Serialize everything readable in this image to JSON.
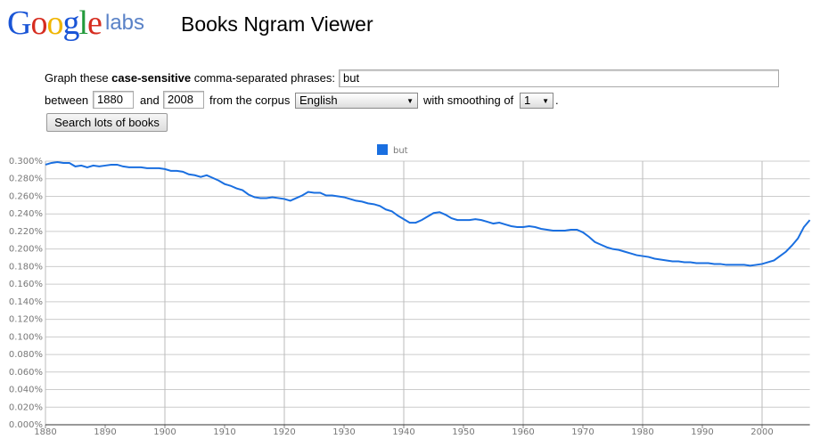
{
  "header": {
    "logo": "Google",
    "logo_suffix": "labs",
    "title": "Books Ngram Viewer"
  },
  "form": {
    "prefix": "Graph these",
    "bold": "case-sensitive",
    "suffix": "comma-separated phrases:",
    "phrase": "but",
    "between": "between",
    "start": "1880",
    "and": "and",
    "end": "2008",
    "corpus_label": "from the corpus",
    "corpus": "English",
    "smoothing_label": "with smoothing of",
    "smoothing": "1",
    "smoothing_end": ".",
    "button": "Search lots of books"
  },
  "chart_data": {
    "type": "line",
    "x": [
      1880,
      1881,
      1882,
      1883,
      1884,
      1885,
      1886,
      1887,
      1888,
      1889,
      1890,
      1891,
      1892,
      1893,
      1894,
      1895,
      1896,
      1897,
      1898,
      1899,
      1900,
      1901,
      1902,
      1903,
      1904,
      1905,
      1906,
      1907,
      1908,
      1909,
      1910,
      1911,
      1912,
      1913,
      1914,
      1915,
      1916,
      1917,
      1918,
      1919,
      1920,
      1921,
      1922,
      1923,
      1924,
      1925,
      1926,
      1927,
      1928,
      1929,
      1930,
      1931,
      1932,
      1933,
      1934,
      1935,
      1936,
      1937,
      1938,
      1939,
      1940,
      1941,
      1942,
      1943,
      1944,
      1945,
      1946,
      1947,
      1948,
      1949,
      1950,
      1951,
      1952,
      1953,
      1954,
      1955,
      1956,
      1957,
      1958,
      1959,
      1960,
      1961,
      1962,
      1963,
      1964,
      1965,
      1966,
      1967,
      1968,
      1969,
      1970,
      1971,
      1972,
      1973,
      1974,
      1975,
      1976,
      1977,
      1978,
      1979,
      1980,
      1981,
      1982,
      1983,
      1984,
      1985,
      1986,
      1987,
      1988,
      1989,
      1990,
      1991,
      1992,
      1993,
      1994,
      1995,
      1996,
      1997,
      1998,
      1999,
      2000,
      2001,
      2002,
      2003,
      2004,
      2005,
      2006,
      2007,
      2008
    ],
    "series": [
      {
        "name": "but",
        "color": "#1a6fe0",
        "values": [
          0.296,
          0.298,
          0.299,
          0.298,
          0.298,
          0.294,
          0.295,
          0.293,
          0.295,
          0.294,
          0.295,
          0.296,
          0.296,
          0.294,
          0.293,
          0.293,
          0.293,
          0.292,
          0.292,
          0.292,
          0.291,
          0.289,
          0.289,
          0.288,
          0.285,
          0.284,
          0.282,
          0.284,
          0.281,
          0.278,
          0.274,
          0.272,
          0.269,
          0.267,
          0.262,
          0.259,
          0.258,
          0.258,
          0.259,
          0.258,
          0.257,
          0.255,
          0.258,
          0.261,
          0.265,
          0.264,
          0.264,
          0.261,
          0.261,
          0.26,
          0.259,
          0.257,
          0.255,
          0.254,
          0.252,
          0.251,
          0.249,
          0.245,
          0.243,
          0.238,
          0.234,
          0.23,
          0.23,
          0.233,
          0.237,
          0.241,
          0.242,
          0.239,
          0.235,
          0.233,
          0.233,
          0.233,
          0.234,
          0.233,
          0.231,
          0.229,
          0.23,
          0.228,
          0.226,
          0.225,
          0.225,
          0.226,
          0.225,
          0.223,
          0.222,
          0.221,
          0.221,
          0.221,
          0.222,
          0.222,
          0.219,
          0.214,
          0.208,
          0.205,
          0.202,
          0.2,
          0.199,
          0.197,
          0.195,
          0.193,
          0.192,
          0.191,
          0.189,
          0.188,
          0.187,
          0.186,
          0.186,
          0.185,
          0.185,
          0.184,
          0.184,
          0.184,
          0.183,
          0.183,
          0.182,
          0.182,
          0.182,
          0.182,
          0.181,
          0.182,
          0.183,
          0.185,
          0.187,
          0.192,
          0.197,
          0.204,
          0.212,
          0.225,
          0.233
        ]
      }
    ],
    "xlim": [
      1880,
      2008
    ],
    "xticks": [
      1880,
      1890,
      1900,
      1910,
      1920,
      1930,
      1940,
      1950,
      1960,
      1970,
      1980,
      1990,
      2000
    ],
    "ylim": [
      0,
      0.3
    ],
    "yticks": [
      {
        "value": 0,
        "label": "0.000%"
      },
      {
        "value": 0.02,
        "label": "0.020%"
      },
      {
        "value": 0.04,
        "label": "0.040%"
      },
      {
        "value": 0.06,
        "label": "0.060%"
      },
      {
        "value": 0.08,
        "label": "0.080%"
      },
      {
        "value": 0.1,
        "label": "0.100%"
      },
      {
        "value": 0.12,
        "label": "0.120%"
      },
      {
        "value": 0.14,
        "label": "0.140%"
      },
      {
        "value": 0.16,
        "label": "0.160%"
      },
      {
        "value": 0.18,
        "label": "0.180%"
      },
      {
        "value": 0.2,
        "label": "0.200%"
      },
      {
        "value": 0.22,
        "label": "0.220%"
      },
      {
        "value": 0.24,
        "label": "0.240%"
      },
      {
        "value": 0.26,
        "label": "0.260%"
      },
      {
        "value": 0.28,
        "label": "0.280%"
      },
      {
        "value": 0.3,
        "label": "0.300%"
      }
    ],
    "grid": true,
    "legend": "top"
  }
}
